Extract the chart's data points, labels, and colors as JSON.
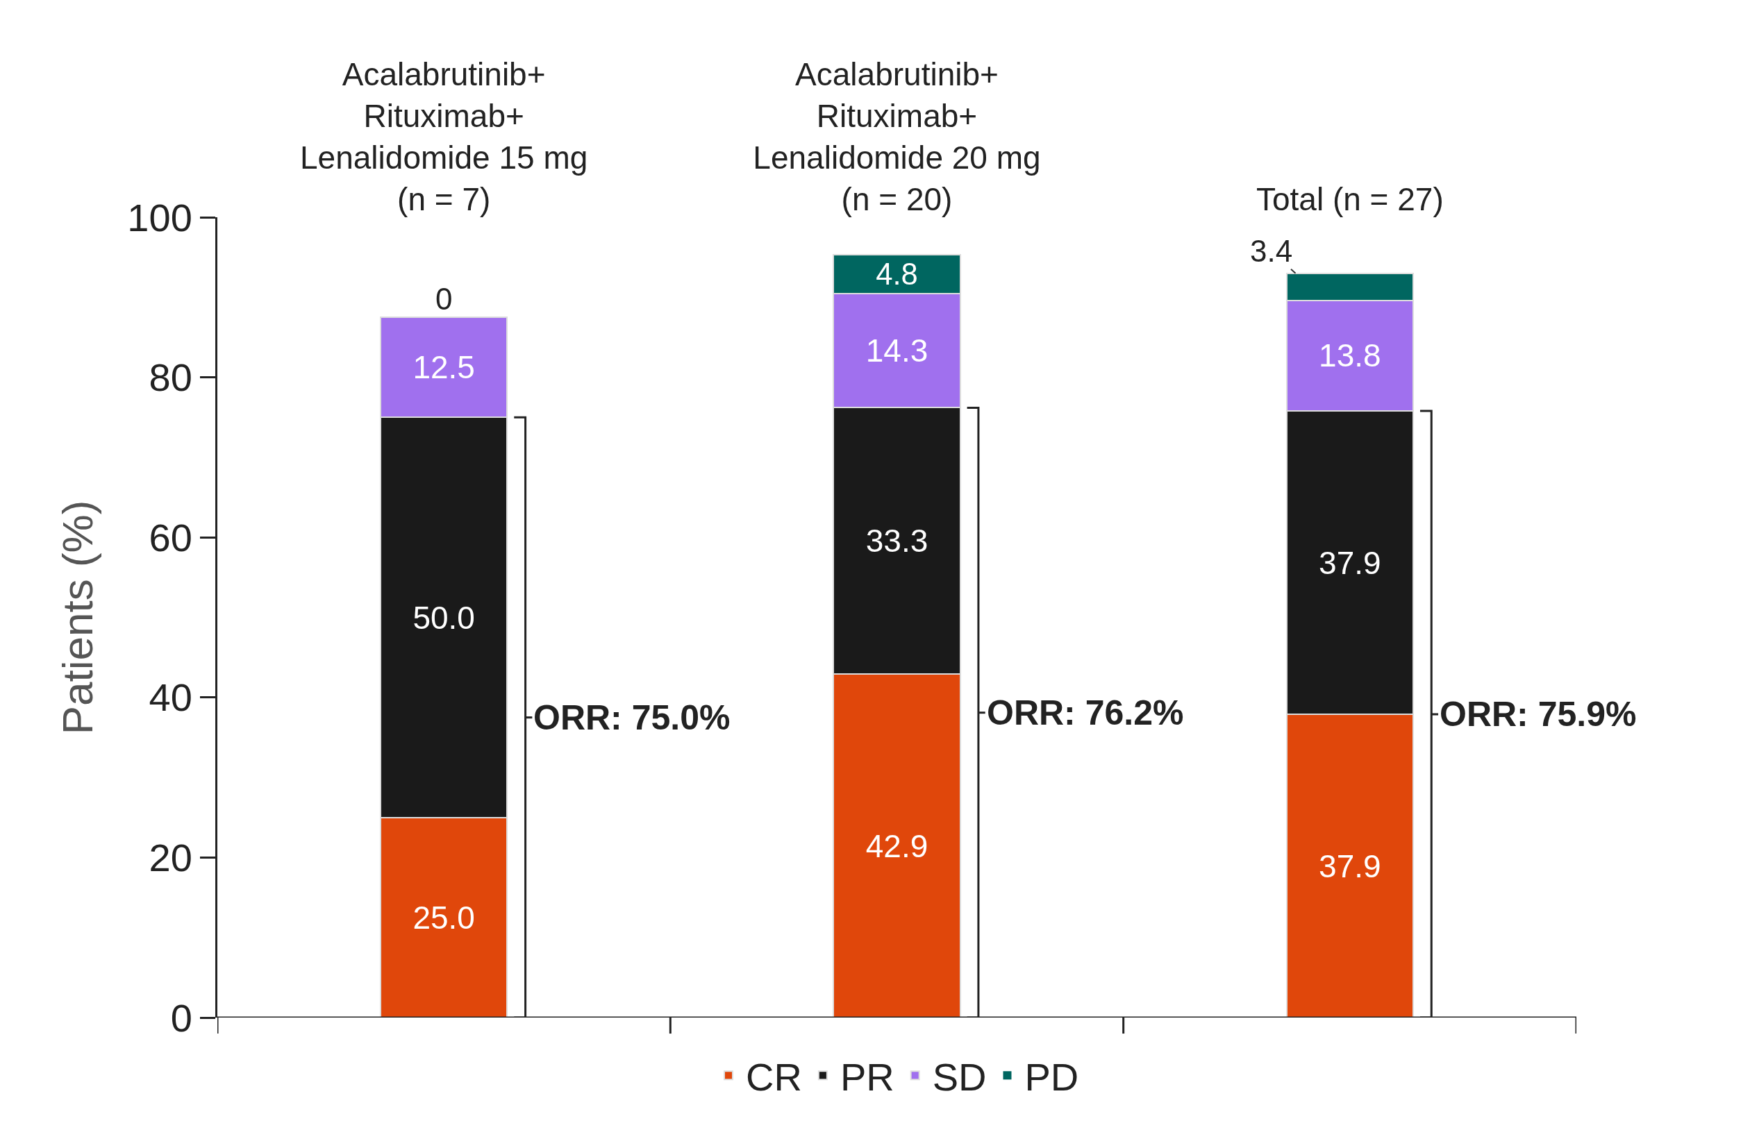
{
  "chart_data": {
    "type": "bar",
    "stacked": true,
    "ylabel": "Patients (%)",
    "categories": [
      "Acalabrutinib+\nRituximab+\nLenalidomide 15 mg\n(n = 7)",
      "Acalabrutinib+\nRituximab+\nLenalidomide 20 mg\n(n = 20)",
      "Total (n = 27)"
    ],
    "series": [
      {
        "name": "CR",
        "color": "#e0470b",
        "values": [
          25.0,
          42.9,
          37.9
        ],
        "value_labels": [
          "25.0",
          "42.9",
          "37.9"
        ]
      },
      {
        "name": "PR",
        "color": "#1a1a1a",
        "values": [
          50.0,
          33.3,
          37.9
        ],
        "value_labels": [
          "50.0",
          "33.3",
          "37.9"
        ]
      },
      {
        "name": "SD",
        "color": "#a070ee",
        "values": [
          12.5,
          14.3,
          13.8
        ],
        "value_labels": [
          "12.5",
          "14.3",
          "13.8"
        ]
      },
      {
        "name": "PD",
        "color": "#006660",
        "values": [
          0,
          4.8,
          3.4
        ],
        "value_labels": [
          "0",
          "4.8",
          "3.4"
        ]
      }
    ],
    "annotations": [
      "ORR: 75.0%",
      "ORR: 76.2%",
      "ORR: 75.9%"
    ],
    "ylim": [
      0,
      100
    ],
    "yticks": [
      0,
      20,
      40,
      60,
      80,
      100
    ],
    "grid": false,
    "legend": "bottom"
  }
}
